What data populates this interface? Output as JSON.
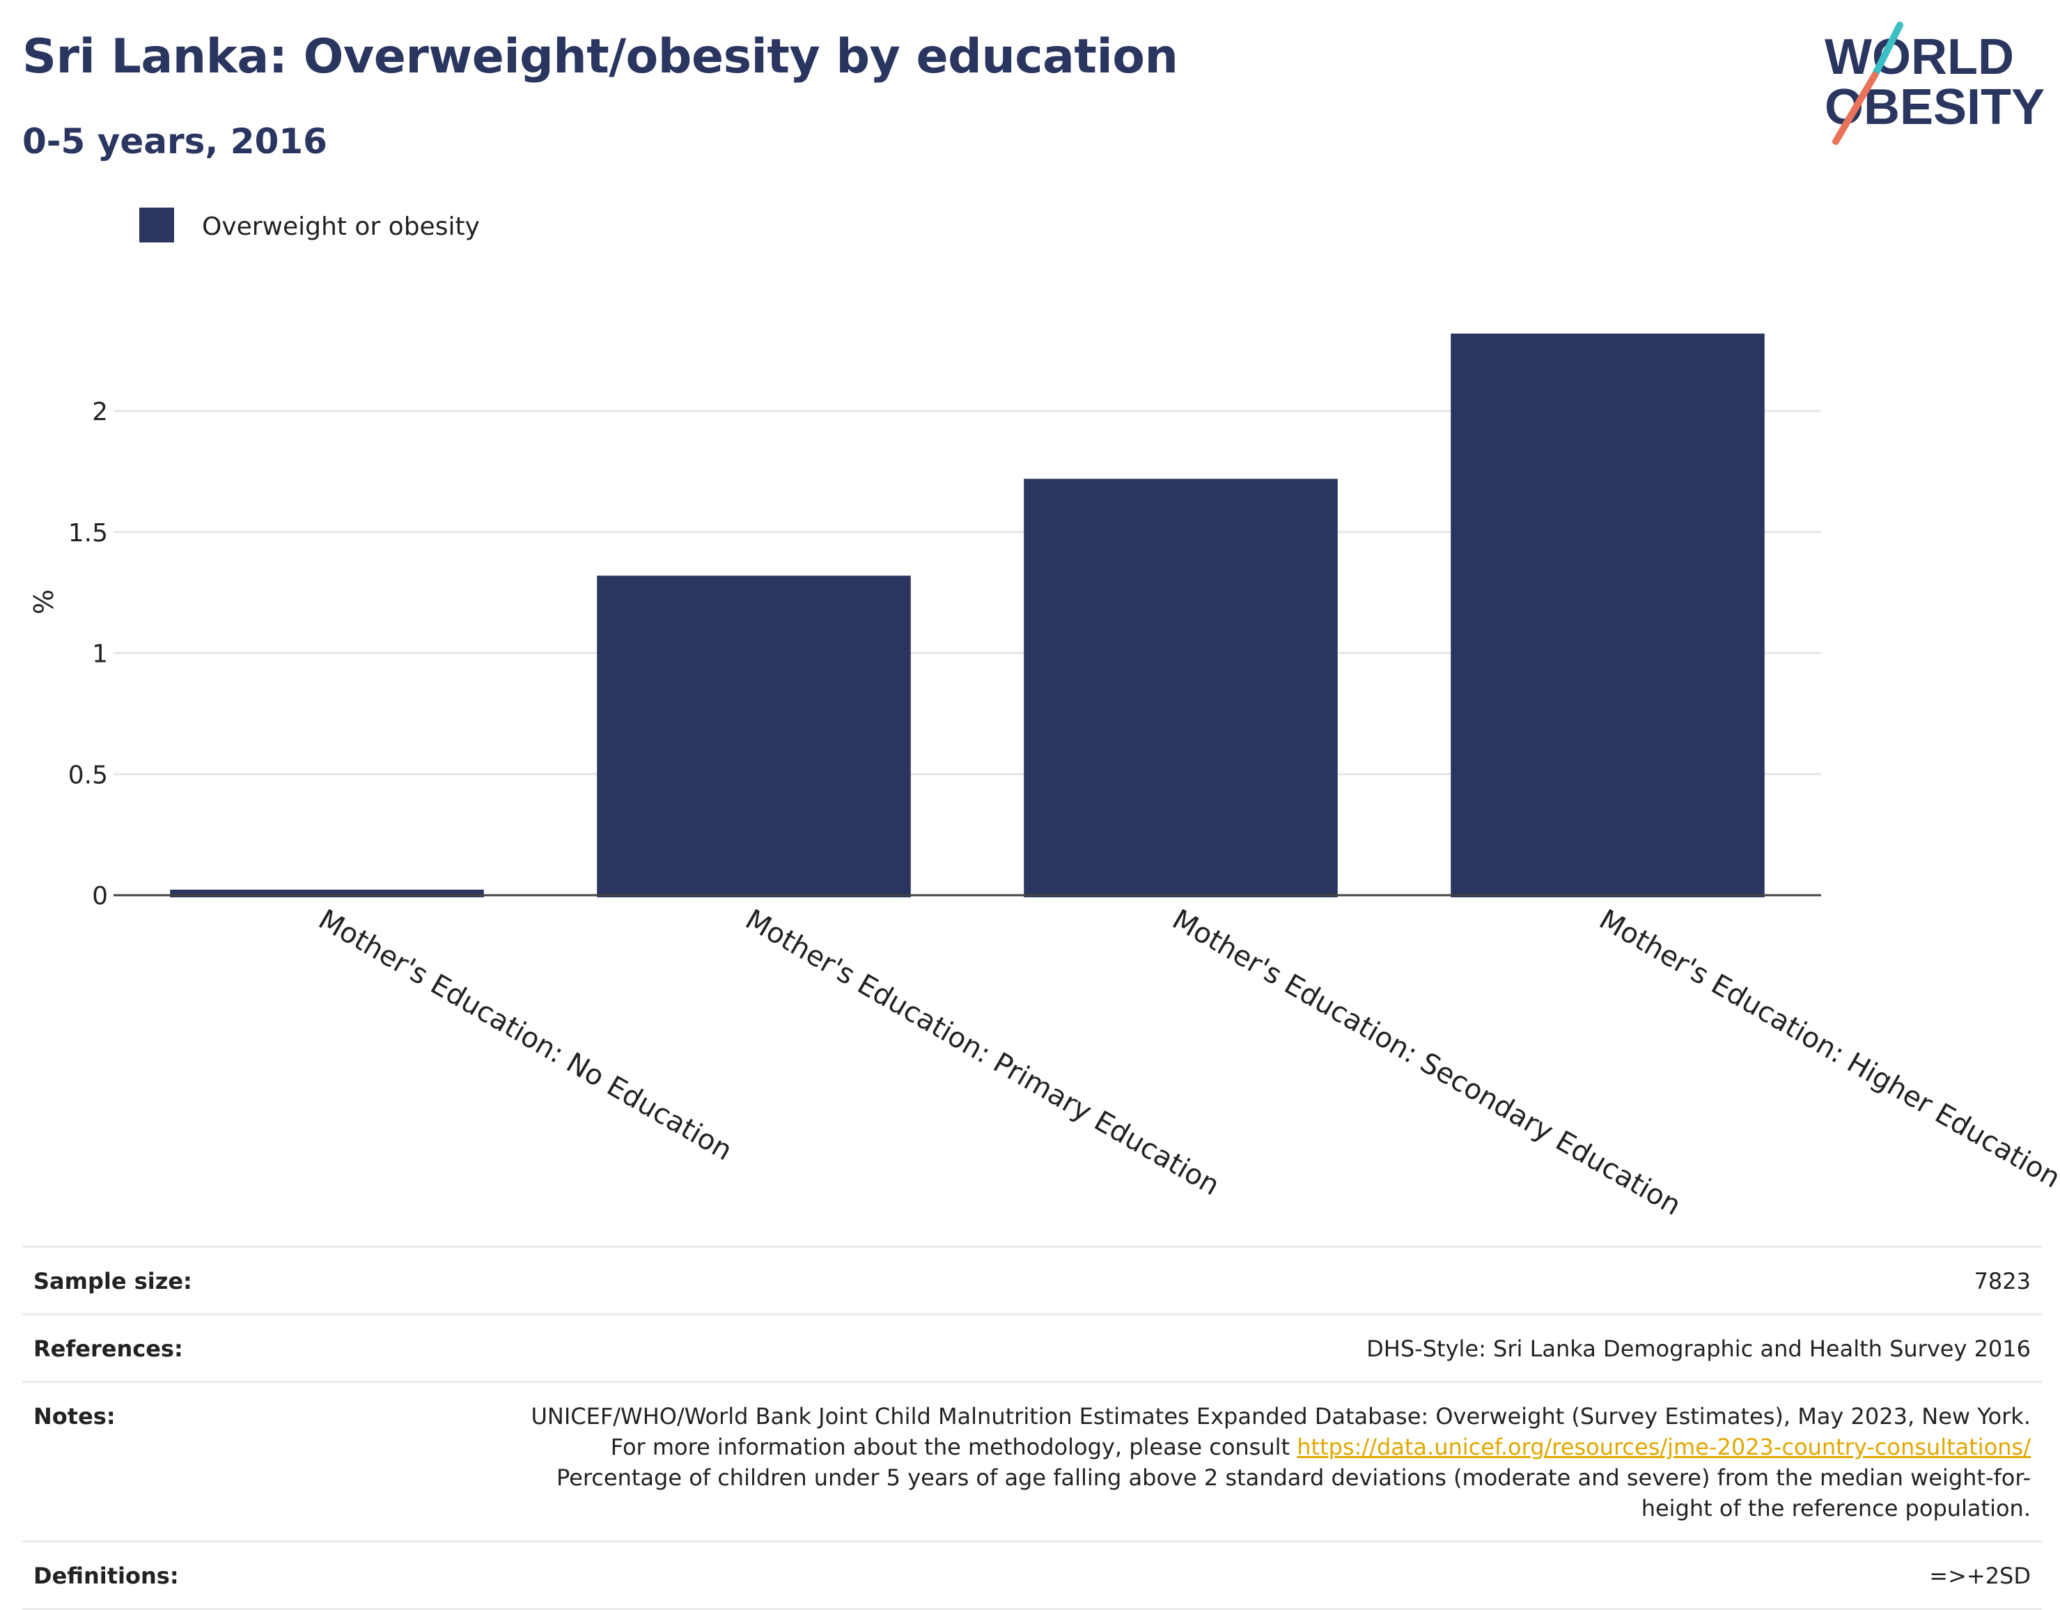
{
  "header": {
    "title": "Sri Lanka: Overweight/obesity by education",
    "subtitle": "0-5 years, 2016"
  },
  "logo": {
    "line1": "WORLD",
    "line2": "OBESITY",
    "colors": {
      "text": "#2a3560",
      "slash_top": "#3bbfc4",
      "slash_bottom": "#e8735a"
    }
  },
  "chart_data": {
    "type": "bar",
    "title": "Sri Lanka: Overweight/obesity by education",
    "subtitle": "0-5 years, 2016",
    "categories": [
      "Mother's Education: No Education",
      "Mother's Education: Primary Education",
      "Mother's Education: Secondary Education",
      "Mother's Education: Higher Education"
    ],
    "series": [
      {
        "name": "Overweight or obesity",
        "values": [
          0.02,
          1.32,
          1.72,
          2.32
        ],
        "color": "#2a3560"
      }
    ],
    "xlabel": "",
    "ylabel": "%",
    "ylim": [
      0,
      2.5
    ],
    "yticks": [
      0,
      0.5,
      1,
      1.5,
      2
    ],
    "ytick_labels": [
      "0",
      "0.5",
      "1",
      "1.5",
      "2"
    ],
    "grid": true,
    "legend_position": "top-left"
  },
  "footer": {
    "sample_size": {
      "label": "Sample size:",
      "value": "7823"
    },
    "references": {
      "label": "References:",
      "value": "DHS-Style: Sri Lanka Demographic and Health Survey 2016"
    },
    "notes": {
      "label": "Notes:",
      "text1": "UNICEF/WHO/World Bank Joint Child Malnutrition Estimates Expanded Database: Overweight (Survey Estimates), May 2023, New York. For more information about the methodology, please consult ",
      "link": "https://data.unicef.org/resources/jme-2023-country-consultations/",
      "text2": " Percentage of children under 5 years of age falling above 2 standard deviations (moderate and severe) from the median weight-for-height of the reference population."
    },
    "definitions": {
      "label": "Definitions:",
      "value": "=>+2SD"
    }
  }
}
